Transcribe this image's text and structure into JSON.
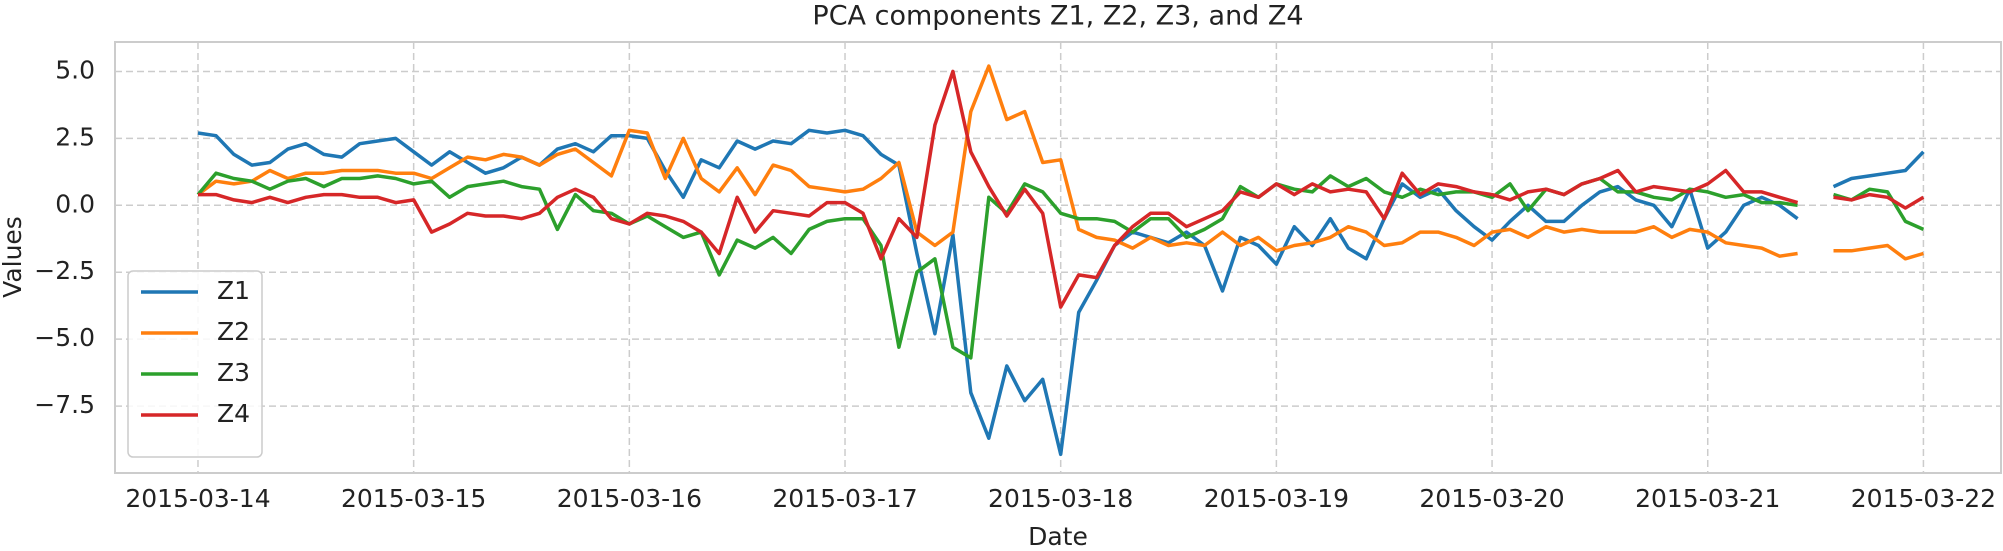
{
  "chart_data": {
    "type": "line",
    "title": "PCA components Z1, Z2, Z3, and Z4",
    "x_label": "Date",
    "y_label": "Values",
    "x": [
      "2015-03-14 00:00",
      "2015-03-14 02:00",
      "2015-03-14 04:00",
      "2015-03-14 06:00",
      "2015-03-14 08:00",
      "2015-03-14 10:00",
      "2015-03-14 12:00",
      "2015-03-14 14:00",
      "2015-03-14 16:00",
      "2015-03-14 18:00",
      "2015-03-14 20:00",
      "2015-03-14 22:00",
      "2015-03-15 00:00",
      "2015-03-15 02:00",
      "2015-03-15 04:00",
      "2015-03-15 06:00",
      "2015-03-15 08:00",
      "2015-03-15 10:00",
      "2015-03-15 12:00",
      "2015-03-15 14:00",
      "2015-03-15 16:00",
      "2015-03-15 18:00",
      "2015-03-15 20:00",
      "2015-03-15 22:00",
      "2015-03-16 00:00",
      "2015-03-16 02:00",
      "2015-03-16 04:00",
      "2015-03-16 06:00",
      "2015-03-16 08:00",
      "2015-03-16 10:00",
      "2015-03-16 12:00",
      "2015-03-16 14:00",
      "2015-03-16 16:00",
      "2015-03-16 18:00",
      "2015-03-16 20:00",
      "2015-03-16 22:00",
      "2015-03-17 00:00",
      "2015-03-17 02:00",
      "2015-03-17 04:00",
      "2015-03-17 06:00",
      "2015-03-17 08:00",
      "2015-03-17 10:00",
      "2015-03-17 12:00",
      "2015-03-17 14:00",
      "2015-03-17 16:00",
      "2015-03-17 18:00",
      "2015-03-17 20:00",
      "2015-03-17 22:00",
      "2015-03-18 00:00",
      "2015-03-18 02:00",
      "2015-03-18 04:00",
      "2015-03-18 06:00",
      "2015-03-18 08:00",
      "2015-03-18 10:00",
      "2015-03-18 12:00",
      "2015-03-18 14:00",
      "2015-03-18 16:00",
      "2015-03-18 18:00",
      "2015-03-18 20:00",
      "2015-03-18 22:00",
      "2015-03-19 00:00",
      "2015-03-19 02:00",
      "2015-03-19 04:00",
      "2015-03-19 06:00",
      "2015-03-19 08:00",
      "2015-03-19 10:00",
      "2015-03-19 12:00",
      "2015-03-19 14:00",
      "2015-03-19 16:00",
      "2015-03-19 18:00",
      "2015-03-19 20:00",
      "2015-03-19 22:00",
      "2015-03-20 00:00",
      "2015-03-20 02:00",
      "2015-03-20 04:00",
      "2015-03-20 06:00",
      "2015-03-20 08:00",
      "2015-03-20 10:00",
      "2015-03-20 12:00",
      "2015-03-20 14:00",
      "2015-03-20 16:00",
      "2015-03-20 18:00",
      "2015-03-20 20:00",
      "2015-03-20 22:00",
      "2015-03-21 00:00",
      "2015-03-21 02:00",
      "2015-03-21 04:00",
      "2015-03-21 06:00",
      "2015-03-21 08:00",
      "2015-03-21 10:00",
      "2015-03-21 12:00",
      "2015-03-21 14:00",
      "2015-03-21 16:00",
      "2015-03-21 18:00",
      "2015-03-21 20:00",
      "2015-03-21 22:00",
      "2015-03-22 00:00"
    ],
    "series": [
      {
        "name": "Z1",
        "color": "#1f77b4",
        "values": [
          2.7,
          2.6,
          1.9,
          1.5,
          1.6,
          2.1,
          2.3,
          1.9,
          1.8,
          2.3,
          2.4,
          2.5,
          2.0,
          1.5,
          2.0,
          1.6,
          1.2,
          1.4,
          1.8,
          1.5,
          2.1,
          2.3,
          2.0,
          2.6,
          2.6,
          2.5,
          1.3,
          0.3,
          1.7,
          1.4,
          2.4,
          2.1,
          2.4,
          2.3,
          2.8,
          2.7,
          2.8,
          2.6,
          1.9,
          1.5,
          -1.8,
          -4.8,
          -1.1,
          -7.0,
          -8.7,
          -6.0,
          -7.3,
          -6.5,
          -9.3,
          -4.0,
          -2.8,
          -1.5,
          -1.0,
          -1.2,
          -1.4,
          -1.0,
          -1.5,
          -3.2,
          -1.2,
          -1.5,
          -2.2,
          -0.8,
          -1.5,
          -0.5,
          -1.6,
          -2.0,
          -0.5,
          0.8,
          0.3,
          0.6,
          -0.2,
          -0.8,
          -1.3,
          -0.6,
          0.0,
          -0.6,
          -0.6,
          0.0,
          0.5,
          0.7,
          0.2,
          0.0,
          -0.8,
          0.6,
          -1.6,
          -1.0,
          0.0,
          0.3,
          0.0,
          -0.5,
          null,
          0.7,
          1.0,
          1.1,
          1.2,
          1.3,
          2.0
        ]
      },
      {
        "name": "Z2",
        "color": "#ff7f0e",
        "values": [
          0.4,
          0.9,
          0.8,
          0.9,
          1.3,
          1.0,
          1.2,
          1.2,
          1.3,
          1.3,
          1.3,
          1.2,
          1.2,
          1.0,
          1.4,
          1.8,
          1.7,
          1.9,
          1.8,
          1.5,
          1.9,
          2.1,
          1.6,
          1.1,
          2.8,
          2.7,
          1.0,
          2.5,
          1.0,
          0.5,
          1.4,
          0.4,
          1.5,
          1.3,
          0.7,
          0.6,
          0.5,
          0.6,
          1.0,
          1.6,
          -1.0,
          -1.5,
          -1.0,
          3.5,
          5.2,
          3.2,
          3.5,
          1.6,
          1.7,
          -0.9,
          -1.2,
          -1.3,
          -1.6,
          -1.2,
          -1.5,
          -1.4,
          -1.5,
          -1.0,
          -1.5,
          -1.2,
          -1.7,
          -1.5,
          -1.4,
          -1.2,
          -0.8,
          -1.0,
          -1.5,
          -1.4,
          -1.0,
          -1.0,
          -1.2,
          -1.5,
          -1.0,
          -0.9,
          -1.2,
          -0.8,
          -1.0,
          -0.9,
          -1.0,
          -1.0,
          -1.0,
          -0.8,
          -1.2,
          -0.9,
          -1.0,
          -1.4,
          -1.5,
          -1.6,
          -1.9,
          -1.8,
          null,
          -1.7,
          -1.7,
          -1.6,
          -1.5,
          -2.0,
          -1.8
        ]
      },
      {
        "name": "Z3",
        "color": "#2ca02c",
        "values": [
          0.4,
          1.2,
          1.0,
          0.9,
          0.6,
          0.9,
          1.0,
          0.7,
          1.0,
          1.0,
          1.1,
          1.0,
          0.8,
          0.9,
          0.3,
          0.7,
          0.8,
          0.9,
          0.7,
          0.6,
          -0.9,
          0.4,
          -0.2,
          -0.3,
          -0.7,
          -0.4,
          -0.8,
          -1.2,
          -1.0,
          -2.6,
          -1.3,
          -1.6,
          -1.2,
          -1.8,
          -0.9,
          -0.6,
          -0.5,
          -0.5,
          -1.5,
          -5.3,
          -2.5,
          -2.0,
          -5.3,
          -5.7,
          0.3,
          -0.3,
          0.8,
          0.5,
          -0.3,
          -0.5,
          -0.5,
          -0.6,
          -1.0,
          -0.5,
          -0.5,
          -1.2,
          -0.9,
          -0.5,
          0.7,
          0.3,
          0.8,
          0.6,
          0.5,
          1.1,
          0.7,
          1.0,
          0.5,
          0.3,
          0.6,
          0.4,
          0.5,
          0.5,
          0.3,
          0.8,
          -0.2,
          0.6,
          0.4,
          0.8,
          1.0,
          0.5,
          0.5,
          0.3,
          0.2,
          0.6,
          0.5,
          0.3,
          0.4,
          0.1,
          0.1,
          0.0,
          null,
          0.4,
          0.2,
          0.6,
          0.5,
          -0.6,
          -0.9
        ]
      },
      {
        "name": "Z4",
        "color": "#d62728",
        "values": [
          0.4,
          0.4,
          0.2,
          0.1,
          0.3,
          0.1,
          0.3,
          0.4,
          0.4,
          0.3,
          0.3,
          0.1,
          0.2,
          -1.0,
          -0.7,
          -0.3,
          -0.4,
          -0.4,
          -0.5,
          -0.3,
          0.3,
          0.6,
          0.3,
          -0.5,
          -0.7,
          -0.3,
          -0.4,
          -0.6,
          -1.0,
          -1.8,
          0.3,
          -1.0,
          -0.2,
          -0.3,
          -0.4,
          0.1,
          0.1,
          -0.3,
          -2.0,
          -0.5,
          -1.2,
          3.0,
          5.0,
          2.0,
          0.7,
          -0.4,
          0.6,
          -0.3,
          -3.8,
          -2.6,
          -2.7,
          -1.5,
          -0.8,
          -0.3,
          -0.3,
          -0.8,
          -0.5,
          -0.2,
          0.5,
          0.3,
          0.8,
          0.4,
          0.8,
          0.5,
          0.6,
          0.5,
          -0.5,
          1.2,
          0.4,
          0.8,
          0.7,
          0.5,
          0.4,
          0.2,
          0.5,
          0.6,
          0.4,
          0.8,
          1.0,
          1.3,
          0.5,
          0.7,
          0.6,
          0.5,
          0.8,
          1.3,
          0.5,
          0.5,
          0.3,
          0.1,
          null,
          0.3,
          0.2,
          0.4,
          0.3,
          -0.1,
          0.3
        ]
      }
    ],
    "xlim": [
      "2015-03-13 14:46",
      "2015-03-22 08:38"
    ],
    "xticks": [
      "2015-03-14",
      "2015-03-15",
      "2015-03-16",
      "2015-03-17",
      "2015-03-18",
      "2015-03-19",
      "2015-03-20",
      "2015-03-21",
      "2015-03-22"
    ],
    "ylim": [
      -10.0,
      6.1
    ],
    "yticks": [
      {
        "value": -7.5,
        "label": "−7.5"
      },
      {
        "value": -5,
        "label": "−5.0"
      },
      {
        "value": -2.5,
        "label": "−2.5"
      },
      {
        "value": 0,
        "label": "0.0"
      },
      {
        "value": 2.5,
        "label": "2.5"
      },
      {
        "value": 5,
        "label": "5.0"
      }
    ],
    "grid": true,
    "legend": "lower left"
  }
}
